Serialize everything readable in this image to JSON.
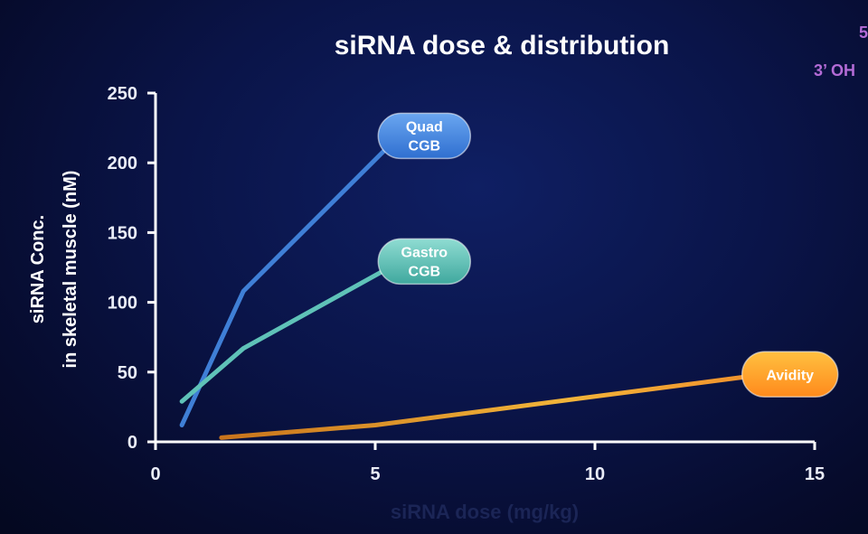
{
  "corner_text": {
    "top": "5",
    "bottom": "3’ OH"
  },
  "chart_data": {
    "type": "line",
    "title": "siRNA dose & distribution",
    "xlabel": "siRNA dose   (mg/kg)",
    "ylabel_lines": [
      "siRNA Conc.",
      "in skeletal muscle (nM)"
    ],
    "xlim": [
      0,
      15
    ],
    "ylim": [
      0,
      250
    ],
    "xticks": [
      0,
      5,
      10,
      15
    ],
    "yticks": [
      0,
      50,
      100,
      150,
      200,
      250
    ],
    "grid": false,
    "series": [
      {
        "name": "Quad CGB",
        "label_lines": [
          "Quad",
          "CGB"
        ],
        "color": "#3f7fd6",
        "pill": [
          "#6aa6f0",
          "#2f6fd0"
        ],
        "x": [
          0.6,
          2,
          5.5
        ],
        "y": [
          12,
          108,
          218
        ]
      },
      {
        "name": "Gastro CGB",
        "label_lines": [
          "Gastro",
          "CGB"
        ],
        "color": "#5fc2b8",
        "pill": [
          "#8fdcd2",
          "#3fa89e"
        ],
        "x": [
          0.6,
          2,
          5.5
        ],
        "y": [
          29,
          67,
          128
        ]
      },
      {
        "name": "Avidity",
        "label_lines": [
          "Avidity"
        ],
        "color": "#f0a030",
        "pill": [
          "#ffc040",
          "#ff8a1c"
        ],
        "x": [
          1.5,
          5,
          14.5
        ],
        "y": [
          3,
          12,
          51
        ]
      }
    ]
  }
}
